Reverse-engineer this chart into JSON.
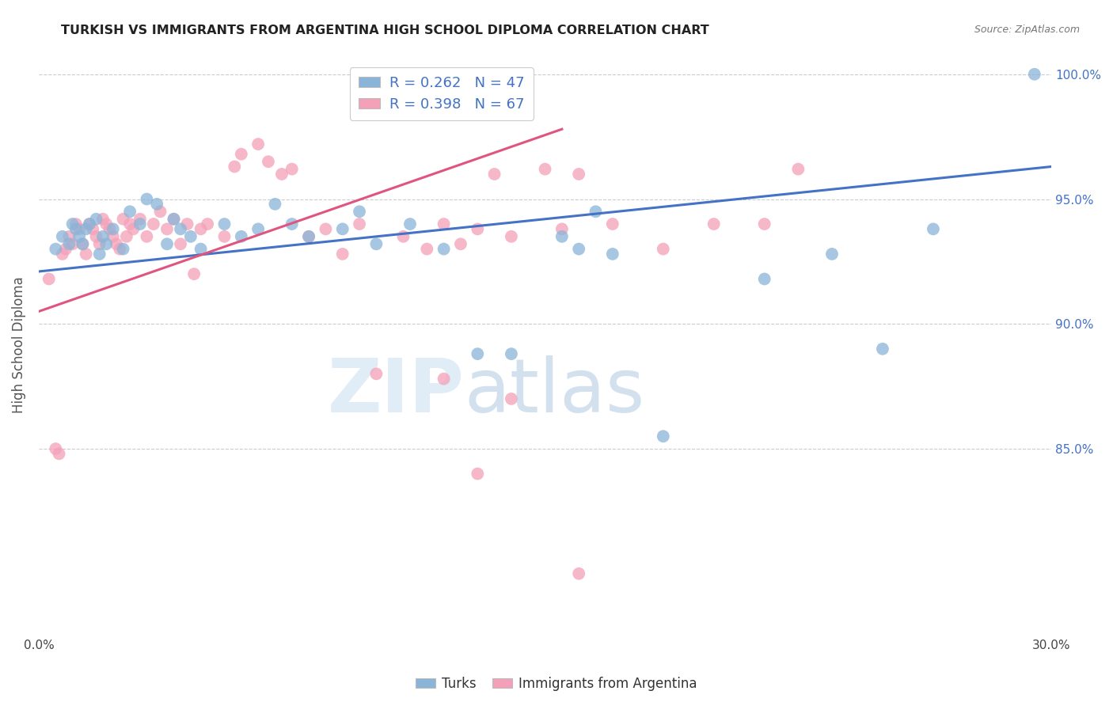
{
  "title": "TURKISH VS IMMIGRANTS FROM ARGENTINA HIGH SCHOOL DIPLOMA CORRELATION CHART",
  "source": "Source: ZipAtlas.com",
  "ylabel": "High School Diploma",
  "watermark": "ZIPatlas",
  "turks_R": 0.262,
  "turks_N": 47,
  "argentina_R": 0.398,
  "argentina_N": 67,
  "xlim": [
    0.0,
    0.3
  ],
  "ylim": [
    0.775,
    1.008
  ],
  "yticks": [
    0.85,
    0.9,
    0.95,
    1.0
  ],
  "ytick_labels": [
    "85.0%",
    "90.0%",
    "95.0%",
    "100.0%"
  ],
  "color_turks": "#8ab4d8",
  "color_argentina": "#f4a0b8",
  "color_turks_line": "#4472c4",
  "color_argentina_line": "#e05580",
  "color_text_blue": "#4472c4",
  "turks_line_x": [
    0.0,
    0.3
  ],
  "turks_line_y": [
    0.921,
    0.963
  ],
  "argentina_line_x": [
    0.0,
    0.155
  ],
  "argentina_line_y": [
    0.905,
    0.978
  ],
  "turks_points_x": [
    0.005,
    0.007,
    0.009,
    0.01,
    0.011,
    0.012,
    0.013,
    0.014,
    0.015,
    0.017,
    0.018,
    0.019,
    0.02,
    0.022,
    0.025,
    0.027,
    0.03,
    0.032,
    0.035,
    0.038,
    0.04,
    0.042,
    0.045,
    0.048,
    0.055,
    0.06,
    0.065,
    0.07,
    0.075,
    0.08,
    0.09,
    0.095,
    0.1,
    0.11,
    0.12,
    0.13,
    0.14,
    0.155,
    0.16,
    0.165,
    0.17,
    0.185,
    0.215,
    0.235,
    0.25,
    0.265,
    0.295
  ],
  "turks_points_y": [
    0.93,
    0.935,
    0.932,
    0.94,
    0.938,
    0.935,
    0.932,
    0.938,
    0.94,
    0.942,
    0.928,
    0.935,
    0.932,
    0.938,
    0.93,
    0.945,
    0.94,
    0.95,
    0.948,
    0.932,
    0.942,
    0.938,
    0.935,
    0.93,
    0.94,
    0.935,
    0.938,
    0.948,
    0.94,
    0.935,
    0.938,
    0.945,
    0.932,
    0.94,
    0.93,
    0.888,
    0.888,
    0.935,
    0.93,
    0.945,
    0.928,
    0.855,
    0.918,
    0.928,
    0.89,
    0.938,
    1.0
  ],
  "argentina_points_x": [
    0.003,
    0.005,
    0.006,
    0.007,
    0.008,
    0.009,
    0.01,
    0.011,
    0.012,
    0.013,
    0.014,
    0.015,
    0.016,
    0.017,
    0.018,
    0.019,
    0.02,
    0.021,
    0.022,
    0.023,
    0.024,
    0.025,
    0.026,
    0.027,
    0.028,
    0.03,
    0.032,
    0.034,
    0.036,
    0.038,
    0.04,
    0.042,
    0.044,
    0.046,
    0.048,
    0.05,
    0.055,
    0.058,
    0.06,
    0.065,
    0.068,
    0.072,
    0.075,
    0.08,
    0.085,
    0.09,
    0.095,
    0.1,
    0.108,
    0.115,
    0.12,
    0.125,
    0.13,
    0.135,
    0.14,
    0.15,
    0.155,
    0.16,
    0.17,
    0.185,
    0.2,
    0.215,
    0.12,
    0.14,
    0.225,
    0.13,
    0.16
  ],
  "argentina_points_y": [
    0.918,
    0.85,
    0.848,
    0.928,
    0.93,
    0.935,
    0.932,
    0.94,
    0.938,
    0.932,
    0.928,
    0.94,
    0.938,
    0.935,
    0.932,
    0.942,
    0.94,
    0.938,
    0.935,
    0.932,
    0.93,
    0.942,
    0.935,
    0.94,
    0.938,
    0.942,
    0.935,
    0.94,
    0.945,
    0.938,
    0.942,
    0.932,
    0.94,
    0.92,
    0.938,
    0.94,
    0.935,
    0.963,
    0.968,
    0.972,
    0.965,
    0.96,
    0.962,
    0.935,
    0.938,
    0.928,
    0.94,
    0.88,
    0.935,
    0.93,
    0.94,
    0.932,
    0.938,
    0.96,
    0.935,
    0.962,
    0.938,
    0.96,
    0.94,
    0.93,
    0.94,
    0.94,
    0.878,
    0.87,
    0.962,
    0.84,
    0.8
  ]
}
